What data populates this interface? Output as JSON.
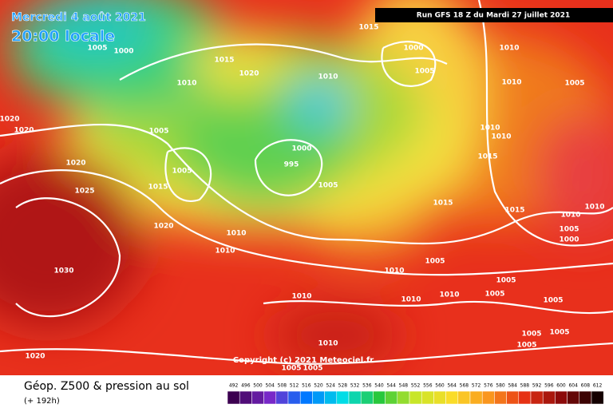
{
  "header": {
    "date": "Mercredi 4 août 2021",
    "time": "20:00 locale",
    "run": "Run GFS 18 Z du Mardi 27 juillet 2021"
  },
  "copyright": "Copyright (c) 2021 Meteociel.fr",
  "footer": {
    "title": "Géop. Z500 & pression au sol",
    "lead": "(+ 192h)"
  },
  "scale": [
    492,
    496,
    500,
    504,
    508,
    512,
    516,
    520,
    524,
    528,
    532,
    536,
    540,
    544,
    548,
    552,
    556,
    560,
    564,
    568,
    572,
    576,
    580,
    584,
    588,
    592,
    596,
    600,
    604,
    608,
    612
  ],
  "isobar_labels": [
    1005,
    1000,
    1015,
    1015,
    1020,
    1010,
    1010,
    1000,
    1005,
    1010,
    1010,
    1005,
    1020,
    1020,
    1005,
    1010,
    1010,
    1000,
    995,
    1005,
    1020,
    1015,
    1025,
    1015,
    1005,
    1015,
    1015,
    1010,
    1010,
    1020,
    1010,
    1005,
    1000,
    1010,
    1005,
    1030,
    1010,
    1005,
    1010,
    1010,
    1010,
    1005,
    1005,
    1010,
    1005,
    1005,
    1005,
    1020,
    1005,
    1005
  ]
}
